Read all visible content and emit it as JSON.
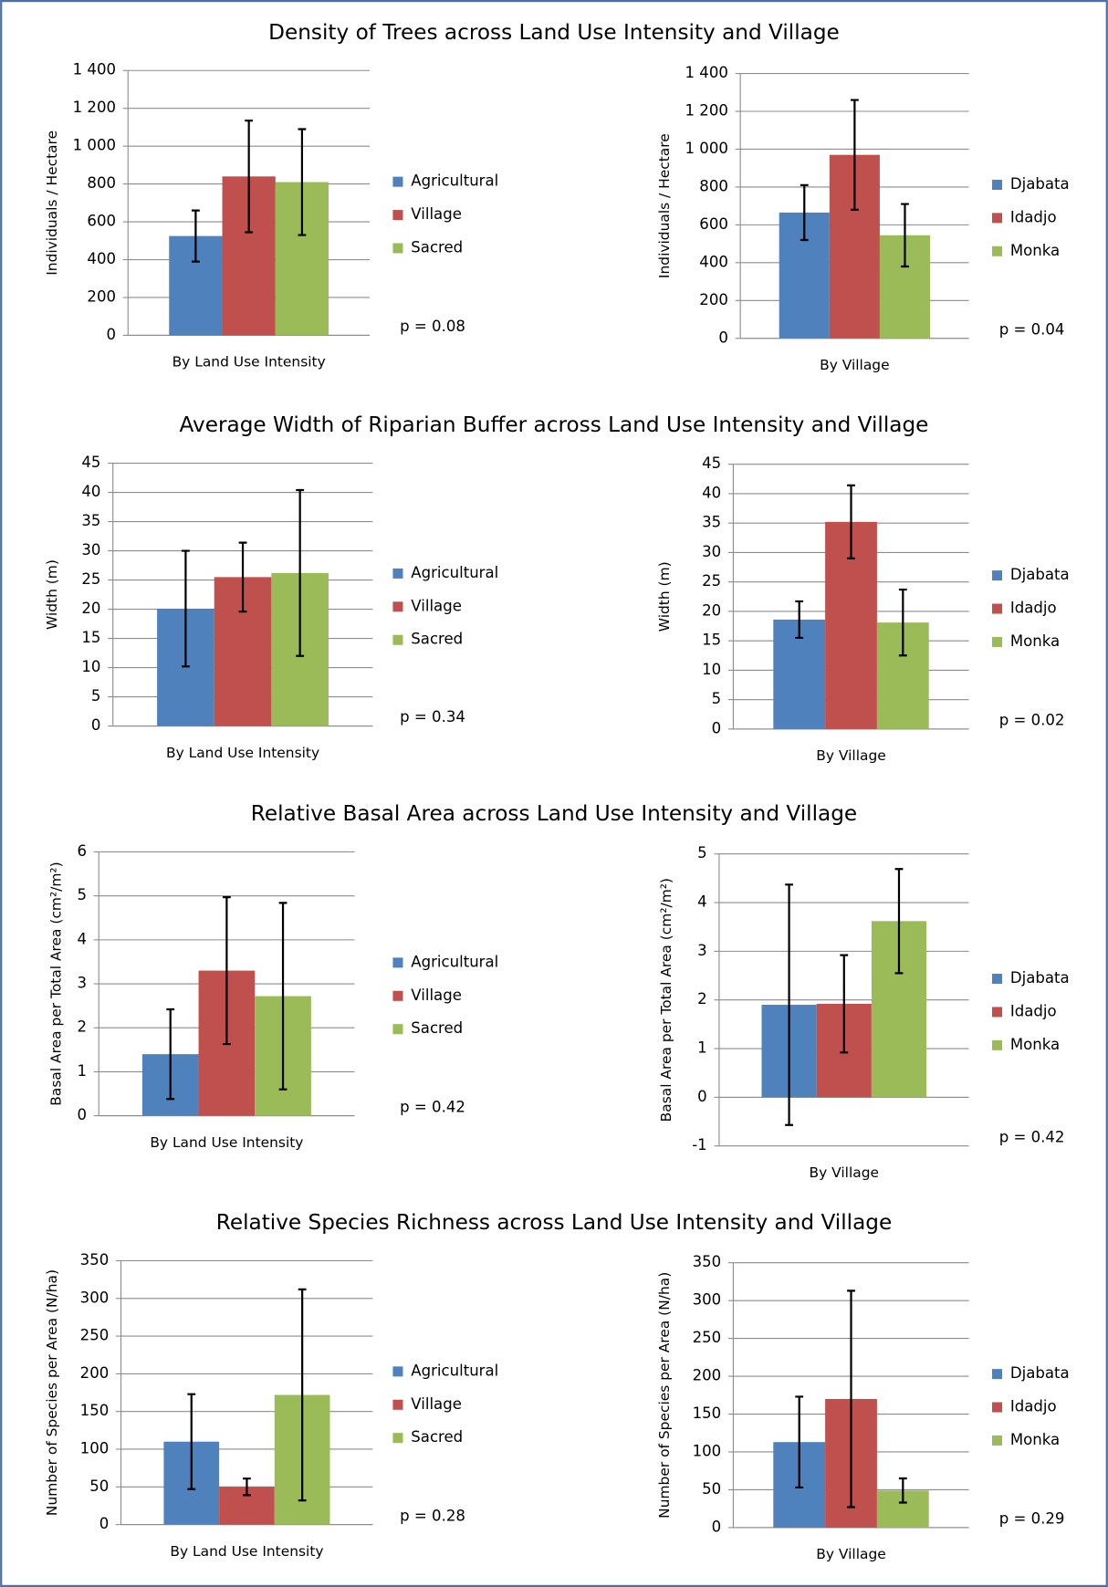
{
  "chart_data": [
    {
      "type": "bar",
      "title": "Density of Trees across Land Use Intensity and Village",
      "categories": [
        "By Land Use Intensity"
      ],
      "ylabel": "Individuals / Hectare",
      "ylim": [
        0,
        1400
      ],
      "yticks": [
        0,
        200,
        400,
        600,
        800,
        {
          "value": 1000,
          "label": "1 000"
        },
        {
          "value": 1200,
          "label": "1 200"
        },
        {
          "value": 1400,
          "label": "1 400"
        }
      ],
      "grid": true,
      "legend": "right",
      "annotation": "p = 0.08",
      "series": [
        {
          "name": "Agricultural",
          "color": "#4f81bd",
          "values": [
            525
          ],
          "errors": [
            135
          ]
        },
        {
          "name": "Village",
          "color": "#c0504d",
          "values": [
            840
          ],
          "errors": [
            295
          ]
        },
        {
          "name": "Sacred",
          "color": "#9bbb59",
          "values": [
            810
          ],
          "errors": [
            280
          ]
        }
      ]
    },
    {
      "type": "bar",
      "categories": [
        "By Village"
      ],
      "ylabel": "Individuals / Hectare",
      "ylim": [
        0,
        1400
      ],
      "yticks": [
        0,
        200,
        400,
        600,
        800,
        {
          "value": 1000,
          "label": "1 000"
        },
        {
          "value": 1200,
          "label": "1 200"
        },
        {
          "value": 1400,
          "label": "1 400"
        }
      ],
      "grid": true,
      "legend": "right",
      "annotation": "p = 0.04",
      "series": [
        {
          "name": "Djabata",
          "color": "#4f81bd",
          "values": [
            665
          ],
          "errors": [
            145
          ]
        },
        {
          "name": "Idadjo",
          "color": "#c0504d",
          "values": [
            970
          ],
          "errors": [
            290
          ]
        },
        {
          "name": "Monka",
          "color": "#9bbb59",
          "values": [
            545
          ],
          "errors": [
            165
          ]
        }
      ]
    },
    {
      "type": "bar",
      "title": "Average Width of Riparian Buffer across Land Use Intensity and Village",
      "categories": [
        "By Land Use Intensity"
      ],
      "ylabel": "Width (m)",
      "ylim": [
        0,
        45
      ],
      "yticks": [
        0,
        5,
        10,
        15,
        20,
        25,
        30,
        35,
        40,
        45
      ],
      "grid": true,
      "legend": "right",
      "annotation": "p = 0.34",
      "series": [
        {
          "name": "Agricultural",
          "color": "#4f81bd",
          "values": [
            20.1
          ],
          "errors": [
            9.9
          ]
        },
        {
          "name": "Village",
          "color": "#c0504d",
          "values": [
            25.5
          ],
          "errors": [
            5.9
          ]
        },
        {
          "name": "Sacred",
          "color": "#9bbb59",
          "values": [
            26.2
          ],
          "errors": [
            14.2
          ]
        }
      ]
    },
    {
      "type": "bar",
      "categories": [
        "By Village"
      ],
      "ylabel": "Width (m)",
      "ylim": [
        0,
        45
      ],
      "yticks": [
        0,
        5,
        10,
        15,
        20,
        25,
        30,
        35,
        40,
        45
      ],
      "grid": true,
      "legend": "right",
      "annotation": "p = 0.02",
      "series": [
        {
          "name": "Djabata",
          "color": "#4f81bd",
          "values": [
            18.6
          ],
          "errors": [
            3.1
          ]
        },
        {
          "name": "Idadjo",
          "color": "#c0504d",
          "values": [
            35.2
          ],
          "errors": [
            6.2
          ]
        },
        {
          "name": "Monka",
          "color": "#9bbb59",
          "values": [
            18.1
          ],
          "errors": [
            5.6
          ]
        }
      ]
    },
    {
      "type": "bar",
      "title": "Relative Basal Area across Land Use Intensity and Village",
      "categories": [
        "By Land Use Intensity"
      ],
      "ylabel": "Basal Area per Total Area (cm²/m²)",
      "ylim": [
        0,
        6
      ],
      "yticks": [
        0,
        1,
        2,
        3,
        4,
        5,
        6
      ],
      "grid": true,
      "legend": "right",
      "annotation": "p = 0.42",
      "series": [
        {
          "name": "Agricultural",
          "color": "#4f81bd",
          "values": [
            1.4
          ],
          "errors": [
            1.02
          ]
        },
        {
          "name": "Village",
          "color": "#c0504d",
          "values": [
            3.3
          ],
          "errors": [
            1.67
          ]
        },
        {
          "name": "Sacred",
          "color": "#9bbb59",
          "values": [
            2.72
          ],
          "errors": [
            2.12
          ]
        }
      ]
    },
    {
      "type": "bar",
      "categories": [
        "By Village"
      ],
      "ylabel": "Basal Area per Total Area (cm²/m²)",
      "ylim": [
        -1,
        5
      ],
      "yticks": [
        -1,
        0,
        1,
        2,
        3,
        4,
        5
      ],
      "grid": true,
      "legend": "right",
      "annotation": "p = 0.42",
      "series": [
        {
          "name": "Djabata",
          "color": "#4f81bd",
          "values": [
            1.9
          ],
          "errors": [
            2.47
          ]
        },
        {
          "name": "Idadjo",
          "color": "#c0504d",
          "values": [
            1.92
          ],
          "errors": [
            1.0
          ]
        },
        {
          "name": "Monka",
          "color": "#9bbb59",
          "values": [
            3.62
          ],
          "errors": [
            1.07
          ]
        }
      ]
    },
    {
      "type": "bar",
      "title": "Relative Species Richness across Land Use Intensity and Village",
      "categories": [
        "By Land Use Intensity"
      ],
      "ylabel": "Number of Species per Area (N/ha)",
      "ylim": [
        0,
        350
      ],
      "yticks": [
        0,
        50,
        100,
        150,
        200,
        250,
        300,
        350
      ],
      "grid": true,
      "legend": "right",
      "annotation": "p = 0.28",
      "series": [
        {
          "name": "Agricultural",
          "color": "#4f81bd",
          "values": [
            110
          ],
          "errors": [
            63
          ]
        },
        {
          "name": "Village",
          "color": "#c0504d",
          "values": [
            50
          ],
          "errors": [
            11
          ]
        },
        {
          "name": "Sacred",
          "color": "#9bbb59",
          "values": [
            172
          ],
          "errors": [
            140
          ]
        }
      ]
    },
    {
      "type": "bar",
      "categories": [
        "By Village"
      ],
      "ylabel": "Number of Species per Area (N/ha)",
      "ylim": [
        0,
        350
      ],
      "yticks": [
        0,
        50,
        100,
        150,
        200,
        250,
        300,
        350
      ],
      "grid": true,
      "legend": "right",
      "annotation": "p = 0.29",
      "series": [
        {
          "name": "Djabata",
          "color": "#4f81bd",
          "values": [
            113
          ],
          "errors": [
            60
          ]
        },
        {
          "name": "Idadjo",
          "color": "#c0504d",
          "values": [
            170
          ],
          "errors": [
            143
          ]
        },
        {
          "name": "Monka",
          "color": "#9bbb59",
          "values": [
            49
          ],
          "errors": [
            16
          ]
        }
      ]
    }
  ]
}
